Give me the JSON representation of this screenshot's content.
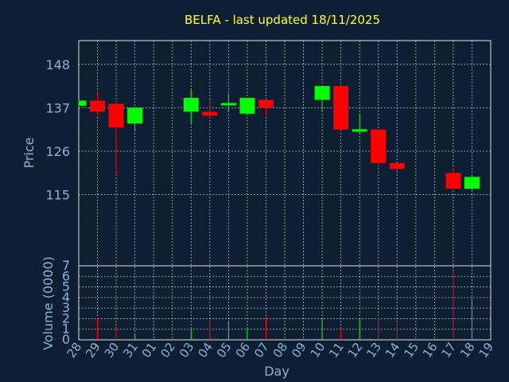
{
  "chart_data": {
    "type": "candlestick",
    "title": "BELFA - last updated 18/11/2025",
    "ylabel": "Price",
    "volume_label": "Volume (0000)",
    "xlabel": "Day",
    "x_ticks": [
      "28",
      "29",
      "30",
      "31",
      "01",
      "02",
      "03",
      "04",
      "05",
      "06",
      "07",
      "08",
      "09",
      "10",
      "11",
      "12",
      "13",
      "14",
      "15",
      "16",
      "17",
      "18",
      "19"
    ],
    "ylim": [
      97,
      154
    ],
    "y_ticks": [
      115,
      126,
      137,
      148
    ],
    "volume_ylim": [
      0,
      7
    ],
    "volume_ticks": [
      0,
      1,
      2,
      3,
      4,
      5,
      6,
      7
    ],
    "colors": {
      "up": "#00ff00",
      "down": "#ff0000",
      "title": "#ffff33",
      "axis_text": "#8eb0d9",
      "background": "#0f1f33"
    },
    "candles": [
      {
        "day": "28",
        "open": 137.5,
        "high": 139.0,
        "low": 137.0,
        "close": 138.8
      },
      {
        "day": "29",
        "open": 138.8,
        "high": 141.0,
        "low": 135.0,
        "close": 136.0
      },
      {
        "day": "30",
        "open": 138.0,
        "high": 138.5,
        "low": 120.0,
        "close": 132.0
      },
      {
        "day": "31",
        "open": 133.0,
        "high": 137.0,
        "low": 131.0,
        "close": 137.0
      },
      {
        "day": "03",
        "open": 136.0,
        "high": 141.5,
        "low": 133.0,
        "close": 139.5
      },
      {
        "day": "04",
        "open": 136.0,
        "high": 139.0,
        "low": 134.5,
        "close": 135.0
      },
      {
        "day": "05",
        "open": 137.8,
        "high": 140.5,
        "low": 136.0,
        "close": 138.0
      },
      {
        "day": "06",
        "open": 135.5,
        "high": 139.5,
        "low": 135.5,
        "close": 139.5
      },
      {
        "day": "07",
        "open": 139.0,
        "high": 139.0,
        "low": 135.0,
        "close": 137.0
      },
      {
        "day": "10",
        "open": 139.0,
        "high": 142.5,
        "low": 136.0,
        "close": 142.5
      },
      {
        "day": "11",
        "open": 142.5,
        "high": 142.5,
        "low": 131.0,
        "close": 131.5
      },
      {
        "day": "12",
        "open": 131.0,
        "high": 135.5,
        "low": 130.5,
        "close": 131.5
      },
      {
        "day": "13",
        "open": 131.5,
        "high": 131.5,
        "low": 122.0,
        "close": 123.0
      },
      {
        "day": "14",
        "open": 123.0,
        "high": 123.0,
        "low": 121.0,
        "close": 121.5
      },
      {
        "day": "17",
        "open": 120.5,
        "high": 122.0,
        "low": 116.5,
        "close": 116.5
      },
      {
        "day": "18",
        "open": 116.5,
        "high": 120.0,
        "low": 116.0,
        "close": 119.5
      }
    ],
    "volume": [
      {
        "day": "29",
        "value": 2.1,
        "dir": "down"
      },
      {
        "day": "30",
        "value": 1.3,
        "dir": "down"
      },
      {
        "day": "31",
        "value": 0.6,
        "dir": "up"
      },
      {
        "day": "03",
        "value": 1.0,
        "dir": "up"
      },
      {
        "day": "04",
        "value": 1.9,
        "dir": "down"
      },
      {
        "day": "05",
        "value": 1.7,
        "dir": "up"
      },
      {
        "day": "06",
        "value": 1.1,
        "dir": "up"
      },
      {
        "day": "07",
        "value": 2.2,
        "dir": "down"
      },
      {
        "day": "10",
        "value": 2.0,
        "dir": "up"
      },
      {
        "day": "11",
        "value": 1.0,
        "dir": "down"
      },
      {
        "day": "12",
        "value": 2.0,
        "dir": "up"
      },
      {
        "day": "13",
        "value": 2.1,
        "dir": "down"
      },
      {
        "day": "14",
        "value": 1.5,
        "dir": "down"
      },
      {
        "day": "17",
        "value": 6.5,
        "dir": "down"
      },
      {
        "day": "18",
        "value": 3.8,
        "dir": "up"
      }
    ]
  }
}
